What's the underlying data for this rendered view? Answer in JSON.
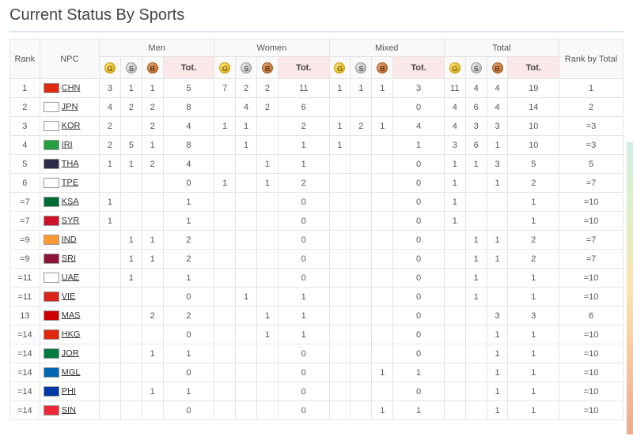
{
  "title": "Current Status By Sports",
  "headers": {
    "rank": "Rank",
    "npc": "NPC",
    "groups": [
      "Men",
      "Women",
      "Mixed",
      "Total"
    ],
    "tot": "Tot.",
    "rank_by_total": "Rank by Total",
    "medal_g": "G",
    "medal_s": "S",
    "medal_b": "B"
  },
  "flag_colors": {
    "CHN": "#de2910",
    "JPN": "#ffffff",
    "KOR": "#ffffff",
    "IRI": "#239f40",
    "THA": "#2d2a4a",
    "TPE": "#ffffff",
    "KSA": "#006c35",
    "SYR": "#ce1126",
    "IND": "#ff9933",
    "SRI": "#8d153a",
    "UAE": "#ffffff",
    "VIE": "#da251d",
    "MAS": "#cc0001",
    "HKG": "#de2910",
    "JOR": "#007a3d",
    "MGL": "#0066b3",
    "PHI": "#0038a8",
    "SIN": "#ed2939"
  },
  "rows": [
    {
      "rank": "1",
      "npc": "CHN",
      "men": {
        "g": "3",
        "s": "1",
        "b": "1",
        "t": "5"
      },
      "women": {
        "g": "7",
        "s": "2",
        "b": "2",
        "t": "11"
      },
      "mixed": {
        "g": "1",
        "s": "1",
        "b": "1",
        "t": "3"
      },
      "total": {
        "g": "11",
        "s": "4",
        "b": "4",
        "t": "19"
      },
      "rbt": "1"
    },
    {
      "rank": "2",
      "npc": "JPN",
      "men": {
        "g": "4",
        "s": "2",
        "b": "2",
        "t": "8"
      },
      "women": {
        "g": "",
        "s": "4",
        "b": "2",
        "t": "6"
      },
      "mixed": {
        "g": "",
        "s": "",
        "b": "",
        "t": "0"
      },
      "total": {
        "g": "4",
        "s": "6",
        "b": "4",
        "t": "14"
      },
      "rbt": "2"
    },
    {
      "rank": "3",
      "npc": "KOR",
      "men": {
        "g": "2",
        "s": "",
        "b": "2",
        "t": "4"
      },
      "women": {
        "g": "1",
        "s": "1",
        "b": "",
        "t": "2"
      },
      "mixed": {
        "g": "1",
        "s": "2",
        "b": "1",
        "t": "4"
      },
      "total": {
        "g": "4",
        "s": "3",
        "b": "3",
        "t": "10"
      },
      "rbt": "=3"
    },
    {
      "rank": "4",
      "npc": "IRI",
      "men": {
        "g": "2",
        "s": "5",
        "b": "1",
        "t": "8"
      },
      "women": {
        "g": "",
        "s": "1",
        "b": "",
        "t": "1"
      },
      "mixed": {
        "g": "1",
        "s": "",
        "b": "",
        "t": "1"
      },
      "total": {
        "g": "3",
        "s": "6",
        "b": "1",
        "t": "10"
      },
      "rbt": "=3"
    },
    {
      "rank": "5",
      "npc": "THA",
      "men": {
        "g": "1",
        "s": "1",
        "b": "2",
        "t": "4"
      },
      "women": {
        "g": "",
        "s": "",
        "b": "1",
        "t": "1"
      },
      "mixed": {
        "g": "",
        "s": "",
        "b": "",
        "t": "0"
      },
      "total": {
        "g": "1",
        "s": "1",
        "b": "3",
        "t": "5"
      },
      "rbt": "5"
    },
    {
      "rank": "6",
      "npc": "TPE",
      "men": {
        "g": "",
        "s": "",
        "b": "",
        "t": "0"
      },
      "women": {
        "g": "1",
        "s": "",
        "b": "1",
        "t": "2"
      },
      "mixed": {
        "g": "",
        "s": "",
        "b": "",
        "t": "0"
      },
      "total": {
        "g": "1",
        "s": "",
        "b": "1",
        "t": "2"
      },
      "rbt": "=7"
    },
    {
      "rank": "=7",
      "npc": "KSA",
      "men": {
        "g": "1",
        "s": "",
        "b": "",
        "t": "1"
      },
      "women": {
        "g": "",
        "s": "",
        "b": "",
        "t": "0"
      },
      "mixed": {
        "g": "",
        "s": "",
        "b": "",
        "t": "0"
      },
      "total": {
        "g": "1",
        "s": "",
        "b": "",
        "t": "1"
      },
      "rbt": "=10"
    },
    {
      "rank": "=7",
      "npc": "SYR",
      "men": {
        "g": "1",
        "s": "",
        "b": "",
        "t": "1"
      },
      "women": {
        "g": "",
        "s": "",
        "b": "",
        "t": "0"
      },
      "mixed": {
        "g": "",
        "s": "",
        "b": "",
        "t": "0"
      },
      "total": {
        "g": "1",
        "s": "",
        "b": "",
        "t": "1"
      },
      "rbt": "=10"
    },
    {
      "rank": "=9",
      "npc": "IND",
      "men": {
        "g": "",
        "s": "1",
        "b": "1",
        "t": "2"
      },
      "women": {
        "g": "",
        "s": "",
        "b": "",
        "t": "0"
      },
      "mixed": {
        "g": "",
        "s": "",
        "b": "",
        "t": "0"
      },
      "total": {
        "g": "",
        "s": "1",
        "b": "1",
        "t": "2"
      },
      "rbt": "=7"
    },
    {
      "rank": "=9",
      "npc": "SRI",
      "men": {
        "g": "",
        "s": "1",
        "b": "1",
        "t": "2"
      },
      "women": {
        "g": "",
        "s": "",
        "b": "",
        "t": "0"
      },
      "mixed": {
        "g": "",
        "s": "",
        "b": "",
        "t": "0"
      },
      "total": {
        "g": "",
        "s": "1",
        "b": "1",
        "t": "2"
      },
      "rbt": "=7"
    },
    {
      "rank": "=11",
      "npc": "UAE",
      "men": {
        "g": "",
        "s": "1",
        "b": "",
        "t": "1"
      },
      "women": {
        "g": "",
        "s": "",
        "b": "",
        "t": "0"
      },
      "mixed": {
        "g": "",
        "s": "",
        "b": "",
        "t": "0"
      },
      "total": {
        "g": "",
        "s": "1",
        "b": "",
        "t": "1"
      },
      "rbt": "=10"
    },
    {
      "rank": "=11",
      "npc": "VIE",
      "men": {
        "g": "",
        "s": "",
        "b": "",
        "t": "0"
      },
      "women": {
        "g": "",
        "s": "1",
        "b": "",
        "t": "1"
      },
      "mixed": {
        "g": "",
        "s": "",
        "b": "",
        "t": "0"
      },
      "total": {
        "g": "",
        "s": "1",
        "b": "",
        "t": "1"
      },
      "rbt": "=10"
    },
    {
      "rank": "13",
      "npc": "MAS",
      "men": {
        "g": "",
        "s": "",
        "b": "2",
        "t": "2"
      },
      "women": {
        "g": "",
        "s": "",
        "b": "1",
        "t": "1"
      },
      "mixed": {
        "g": "",
        "s": "",
        "b": "",
        "t": "0"
      },
      "total": {
        "g": "",
        "s": "",
        "b": "3",
        "t": "3"
      },
      "rbt": "6"
    },
    {
      "rank": "=14",
      "npc": "HKG",
      "men": {
        "g": "",
        "s": "",
        "b": "",
        "t": "0"
      },
      "women": {
        "g": "",
        "s": "",
        "b": "1",
        "t": "1"
      },
      "mixed": {
        "g": "",
        "s": "",
        "b": "",
        "t": "0"
      },
      "total": {
        "g": "",
        "s": "",
        "b": "1",
        "t": "1"
      },
      "rbt": "=10"
    },
    {
      "rank": "=14",
      "npc": "JOR",
      "men": {
        "g": "",
        "s": "",
        "b": "1",
        "t": "1"
      },
      "women": {
        "g": "",
        "s": "",
        "b": "",
        "t": "0"
      },
      "mixed": {
        "g": "",
        "s": "",
        "b": "",
        "t": "0"
      },
      "total": {
        "g": "",
        "s": "",
        "b": "1",
        "t": "1"
      },
      "rbt": "=10"
    },
    {
      "rank": "=14",
      "npc": "MGL",
      "men": {
        "g": "",
        "s": "",
        "b": "",
        "t": "0"
      },
      "women": {
        "g": "",
        "s": "",
        "b": "",
        "t": "0"
      },
      "mixed": {
        "g": "",
        "s": "",
        "b": "1",
        "t": "1"
      },
      "total": {
        "g": "",
        "s": "",
        "b": "1",
        "t": "1"
      },
      "rbt": "=10"
    },
    {
      "rank": "=14",
      "npc": "PHI",
      "men": {
        "g": "",
        "s": "",
        "b": "1",
        "t": "1"
      },
      "women": {
        "g": "",
        "s": "",
        "b": "",
        "t": "0"
      },
      "mixed": {
        "g": "",
        "s": "",
        "b": "",
        "t": "0"
      },
      "total": {
        "g": "",
        "s": "",
        "b": "1",
        "t": "1"
      },
      "rbt": "=10"
    },
    {
      "rank": "=14",
      "npc": "SIN",
      "men": {
        "g": "",
        "s": "",
        "b": "",
        "t": "0"
      },
      "women": {
        "g": "",
        "s": "",
        "b": "",
        "t": "0"
      },
      "mixed": {
        "g": "",
        "s": "",
        "b": "1",
        "t": "1"
      },
      "total": {
        "g": "",
        "s": "",
        "b": "1",
        "t": "1"
      },
      "rbt": "=10"
    }
  ]
}
